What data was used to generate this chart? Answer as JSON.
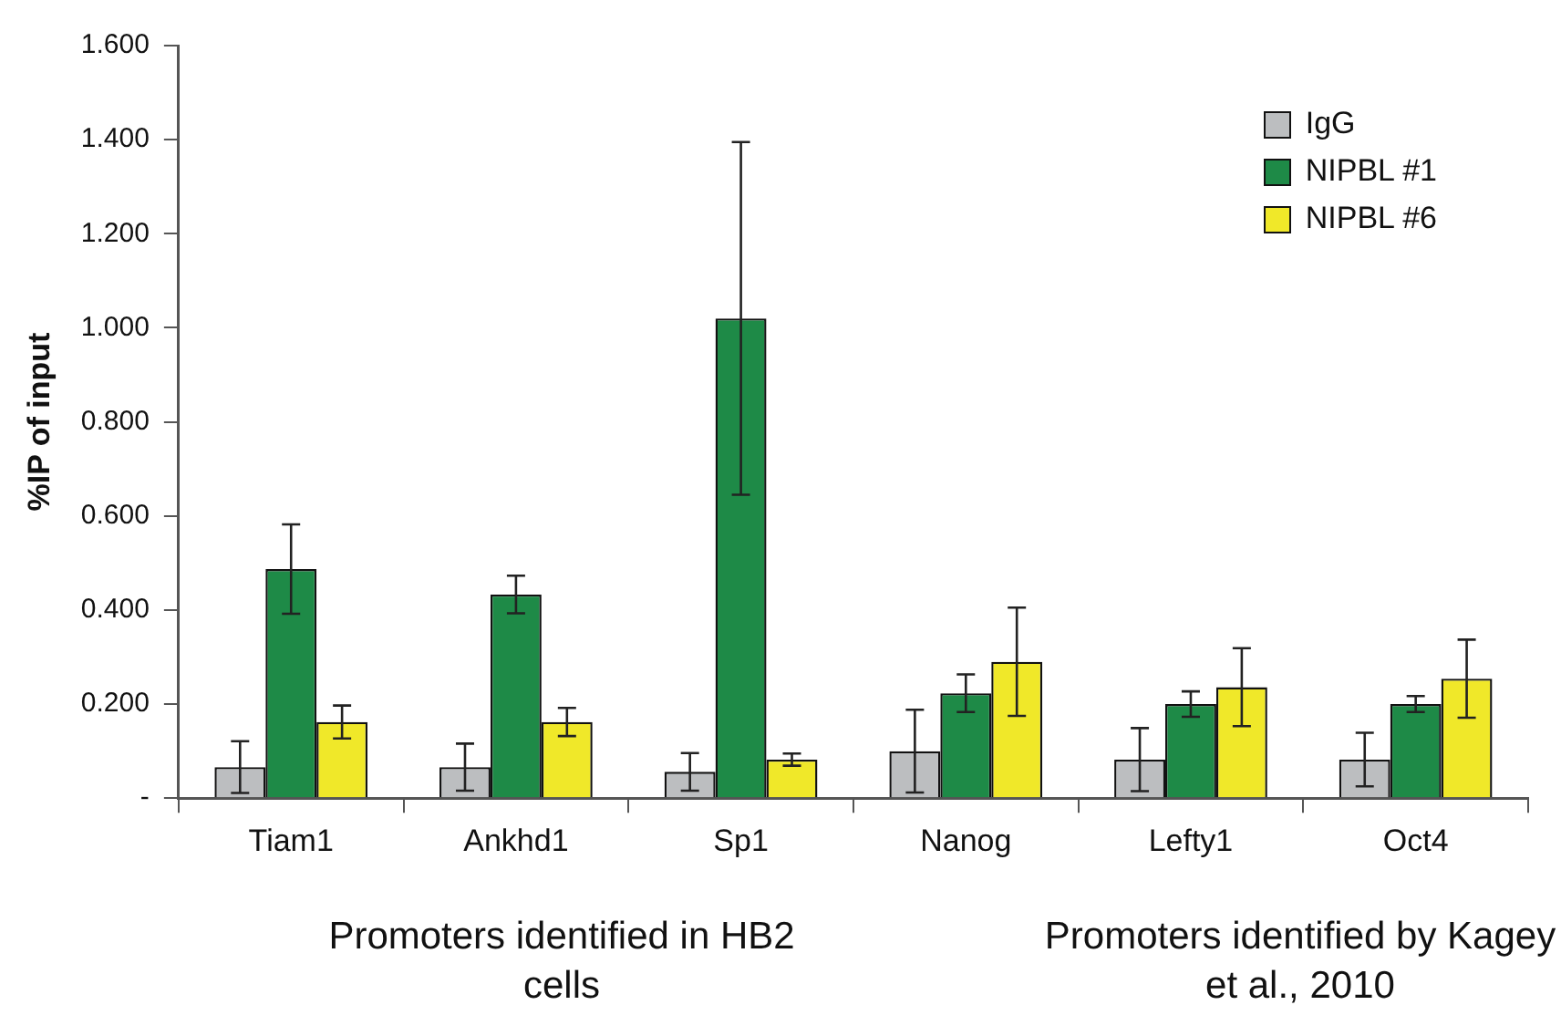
{
  "chart_data": {
    "type": "bar",
    "ylabel": "%IP of input",
    "categories": [
      "Tiam1",
      "Ankhd1",
      "Sp1",
      "Nanog",
      "Lefty1",
      "Oct4"
    ],
    "series": [
      {
        "name": "IgG",
        "color": "#bcbec0",
        "values": [
          0.066,
          0.066,
          0.056,
          0.1,
          0.082,
          0.082
        ],
        "errors": [
          0.055,
          0.05,
          0.04,
          0.088,
          0.067,
          0.057
        ]
      },
      {
        "name": "NIPBL #1",
        "color": "#1e8a47",
        "values": [
          0.487,
          0.433,
          1.02,
          0.223,
          0.2,
          0.2
        ],
        "errors": [
          0.095,
          0.04,
          0.375,
          0.04,
          0.027,
          0.017
        ]
      },
      {
        "name": "NIPBL #6",
        "color": "#f0e829",
        "values": [
          0.162,
          0.162,
          0.082,
          0.29,
          0.236,
          0.254
        ],
        "errors": [
          0.035,
          0.03,
          0.013,
          0.115,
          0.083,
          0.083
        ]
      }
    ],
    "ylim": [
      0,
      1.6
    ],
    "yticks": [
      {
        "value": 0,
        "label": "-"
      },
      {
        "value": 0.2,
        "label": "0.200"
      },
      {
        "value": 0.4,
        "label": "0.400"
      },
      {
        "value": 0.6,
        "label": "0.600"
      },
      {
        "value": 0.8,
        "label": "0.800"
      },
      {
        "value": 1,
        "label": "1.000"
      },
      {
        "value": 1.2,
        "label": "1.200"
      },
      {
        "value": 1.4,
        "label": "1.400"
      },
      {
        "value": 1.6,
        "label": "1.600"
      }
    ],
    "grid": false,
    "legend": "top right",
    "annotations": [
      "Promoters identified in HB2 cells",
      "Promoters identified by Kagey et al., 2010"
    ]
  }
}
